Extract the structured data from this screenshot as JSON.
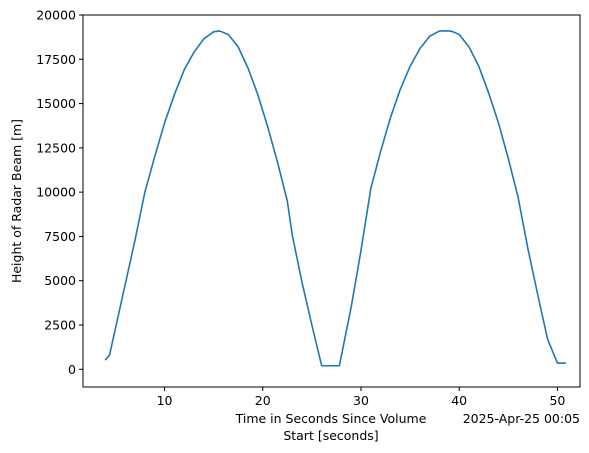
{
  "chart_data": {
    "type": "line",
    "title": "",
    "xlabel_lines": [
      "Time in Seconds Since Volume",
      "Start [seconds]"
    ],
    "ylabel": "Height of Radar Beam [m]",
    "corner_label": "2025-Apr-25 00:05",
    "xlim": [
      1.7,
      52.3
    ],
    "ylim": [
      -1000,
      20000
    ],
    "xticks": [
      10,
      20,
      30,
      40,
      50
    ],
    "xtick_labels": [
      "10",
      "20",
      "30",
      "40",
      "50"
    ],
    "yticks": [
      0,
      2500,
      5000,
      7500,
      10000,
      12500,
      15000,
      17500,
      20000
    ],
    "ytick_labels": [
      "0",
      "2500",
      "5000",
      "7500",
      "10000",
      "12500",
      "15000",
      "17500",
      "20000"
    ],
    "grid": false,
    "line_color": "#1f77b4",
    "series": [
      {
        "x": [
          4.0,
          4.4,
          5.0,
          6.0,
          7.0,
          8.0,
          9.0,
          10.0,
          11.0,
          12.0,
          13.0,
          14.0,
          15.0,
          15.6,
          16.5,
          17.5,
          18.5,
          19.5,
          20.5,
          21.5,
          22.5,
          23.0,
          24.0,
          25.0,
          26.0,
          26.7,
          27.8,
          29.0,
          30.0,
          31.0,
          32.0,
          33.0,
          34.0,
          35.0,
          36.0,
          37.0,
          38.0,
          39.0,
          39.4,
          40.0,
          41.0,
          42.0,
          43.0,
          44.0,
          45.0,
          46.0,
          47.0,
          48.0,
          49.0,
          50.0,
          50.8
        ],
        "y": [
          550,
          800,
          2300,
          4800,
          7300,
          10000,
          12000,
          13900,
          15500,
          16900,
          17900,
          18650,
          19050,
          19100,
          18900,
          18200,
          17000,
          15500,
          13700,
          11700,
          9500,
          7600,
          4900,
          2500,
          200,
          200,
          200,
          3500,
          6700,
          10200,
          12300,
          14200,
          15800,
          17100,
          18100,
          18800,
          19100,
          19100,
          19050,
          18900,
          18200,
          17100,
          15600,
          13900,
          11900,
          9700,
          6800,
          4200,
          1700,
          350,
          350
        ]
      }
    ]
  }
}
